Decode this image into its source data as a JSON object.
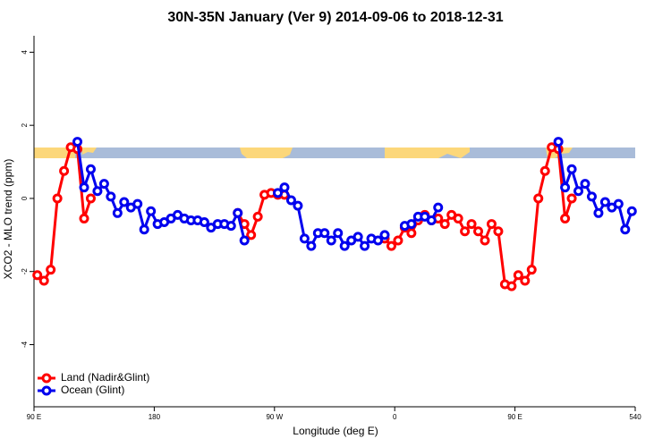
{
  "chart_data": {
    "type": "line",
    "title": "30N-35N January (Ver 9)   2014-09-06 to 2018-12-31",
    "xlabel": "Longitude (deg E)",
    "ylabel": "XCO2 - MLO trend (ppm)",
    "x": [
      92.5,
      97.5,
      102.5,
      107.5,
      112.5,
      117.5,
      122.5,
      127.5,
      132.5,
      137.5,
      142.5,
      147.5,
      152.5,
      157.5,
      162.5,
      167.5,
      172.5,
      177.5,
      182.5,
      187.5,
      192.5,
      197.5,
      202.5,
      207.5,
      212.5,
      217.5,
      222.5,
      227.5,
      232.5,
      237.5,
      242.5,
      247.5,
      252.5,
      257.5,
      262.5,
      267.5,
      272.5,
      277.5,
      282.5,
      287.5,
      292.5,
      297.5,
      302.5,
      307.5,
      312.5,
      317.5,
      322.5,
      327.5,
      332.5,
      337.5,
      342.5,
      347.5,
      352.5,
      357.5,
      362.5,
      367.5,
      372.5,
      377.5,
      382.5,
      387.5,
      392.5,
      397.5,
      402.5,
      407.5,
      412.5,
      417.5,
      422.5,
      427.5,
      432.5,
      437.5,
      442.5,
      447.5,
      452.5,
      457.5,
      462.5,
      467.5,
      472.5,
      477.5,
      482.5,
      487.5,
      492.5,
      497.5,
      502.5,
      507.5,
      512.5,
      517.5,
      522.5,
      527.5,
      532.5,
      537.5
    ],
    "series": [
      {
        "name": "Land (Nadir&Glint)",
        "color": "#ff0000",
        "values": [
          -2.1,
          -2.25,
          -1.95,
          0.0,
          0.75,
          1.4,
          1.35,
          -0.55,
          0.0,
          null,
          null,
          null,
          null,
          null,
          null,
          null,
          null,
          null,
          null,
          null,
          null,
          null,
          null,
          null,
          null,
          null,
          null,
          null,
          null,
          null,
          -0.4,
          -0.7,
          -1.0,
          -0.5,
          0.1,
          0.15,
          0.1,
          0.1,
          null,
          null,
          null,
          null,
          null,
          null,
          null,
          null,
          null,
          null,
          null,
          null,
          null,
          null,
          -1.1,
          -1.3,
          -1.15,
          -0.8,
          -0.95,
          -0.6,
          -0.45,
          -0.6,
          -0.55,
          -0.7,
          -0.45,
          -0.55,
          -0.9,
          -0.7,
          -0.9,
          -1.15,
          -0.7,
          -0.9,
          -2.35,
          -2.4,
          -2.1,
          -2.25,
          -1.95,
          0.0,
          0.75,
          1.4,
          1.35,
          -0.55,
          0.0,
          null,
          null,
          null,
          null,
          null,
          null,
          null,
          null,
          null
        ]
      },
      {
        "name": "Ocean (Glint)",
        "color": "#0000ee",
        "values": [
          null,
          null,
          null,
          null,
          null,
          null,
          1.55,
          0.3,
          0.8,
          0.2,
          0.4,
          0.05,
          -0.4,
          -0.1,
          -0.25,
          -0.15,
          -0.85,
          -0.35,
          -0.7,
          -0.65,
          -0.55,
          -0.45,
          -0.55,
          -0.6,
          -0.6,
          -0.65,
          -0.8,
          -0.7,
          -0.7,
          -0.75,
          -0.4,
          -1.15,
          null,
          null,
          null,
          null,
          0.15,
          0.3,
          -0.05,
          -0.2,
          -1.1,
          -1.3,
          -0.95,
          -0.95,
          -1.15,
          -0.95,
          -1.3,
          -1.15,
          -1.05,
          -1.3,
          -1.1,
          -1.15,
          -1.0,
          null,
          null,
          -0.75,
          -0.7,
          -0.5,
          -0.5,
          -0.6,
          -0.25,
          null,
          null,
          null,
          null,
          null,
          null,
          null,
          null,
          null,
          null,
          null,
          null,
          null,
          null,
          null,
          null,
          null,
          1.55,
          0.3,
          0.8,
          0.2,
          0.4,
          0.05,
          -0.4,
          -0.1,
          -0.25,
          -0.15,
          -0.85,
          -0.35
        ]
      }
    ],
    "xlim": [
      90,
      540
    ],
    "xticks": [
      {
        "value": 90,
        "label": "90 E"
      },
      180,
      {
        "value": 270,
        "label": "90 W"
      },
      {
        "value": 360,
        "label": "0"
      },
      {
        "value": 450,
        "label": "90 E"
      },
      540
    ],
    "ylim": [
      -5.7,
      4.45
    ],
    "yticks": [
      -4,
      -2,
      0,
      2,
      4
    ],
    "legend": "bottom-left"
  }
}
